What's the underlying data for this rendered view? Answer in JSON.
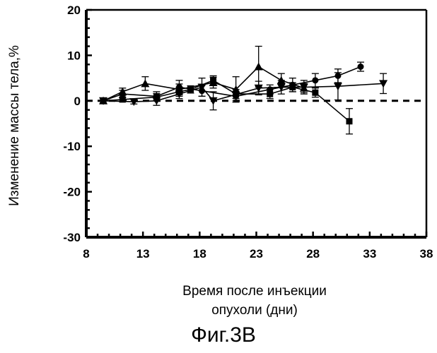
{
  "chart_data": {
    "type": "line",
    "title": "",
    "xlabel": [
      "Время после инъекции",
      "опухоли (дни)"
    ],
    "ylabel": "Изменение массы тела,%",
    "xlim": [
      8,
      38
    ],
    "ylim": [
      -30,
      20
    ],
    "xticks": [
      "8",
      "13",
      "18",
      "23",
      "28",
      "33",
      "38"
    ],
    "yticks": [
      "20",
      "10",
      "0",
      "-10",
      "-20",
      "-30"
    ],
    "reference_line": {
      "y": 0,
      "style": "dashed"
    },
    "grid": false,
    "legend": "none",
    "series": [
      {
        "marker": "circle",
        "points": [
          {
            "x": 9.5,
            "y": 0,
            "err": 0.5
          },
          {
            "x": 11.2,
            "y": 1.5,
            "err": 0.8
          },
          {
            "x": 14.2,
            "y": 1.0,
            "err": 1.0
          },
          {
            "x": 16.2,
            "y": 3.0,
            "err": 1.5
          },
          {
            "x": 18.2,
            "y": 2.2,
            "err": 1.2
          },
          {
            "x": 21.2,
            "y": 1.0,
            "err": 1.0
          },
          {
            "x": 24.2,
            "y": 2.5,
            "err": 1.0
          },
          {
            "x": 26.2,
            "y": 3.5,
            "err": 1.5
          },
          {
            "x": 28.2,
            "y": 4.5,
            "err": 1.5
          },
          {
            "x": 30.2,
            "y": 5.5,
            "err": 1.5
          },
          {
            "x": 32.2,
            "y": 7.5,
            "err": 1.0
          }
        ]
      },
      {
        "marker": "square",
        "points": [
          {
            "x": 9.5,
            "y": 0,
            "err": 0.5
          },
          {
            "x": 11.2,
            "y": 0.3,
            "err": 0.5
          },
          {
            "x": 14.2,
            "y": 0.8,
            "err": 0.8
          },
          {
            "x": 16.2,
            "y": 2.0,
            "err": 1.0
          },
          {
            "x": 17.2,
            "y": 2.5,
            "err": 0.8
          },
          {
            "x": 19.2,
            "y": 4.5,
            "err": 1.0
          },
          {
            "x": 21.2,
            "y": 1.5,
            "err": 1.0
          },
          {
            "x": 24.2,
            "y": 1.5,
            "err": 1.0
          },
          {
            "x": 26.2,
            "y": 3.0,
            "err": 1.0
          },
          {
            "x": 28.2,
            "y": 1.8,
            "err": 1.0
          },
          {
            "x": 31.2,
            "y": -4.5,
            "err": 2.8
          }
        ]
      },
      {
        "marker": "triangle-up",
        "points": [
          {
            "x": 9.5,
            "y": 0,
            "err": 0.5
          },
          {
            "x": 11.2,
            "y": 2.0,
            "err": 0.8
          },
          {
            "x": 13.2,
            "y": 3.8,
            "err": 1.5
          },
          {
            "x": 16.2,
            "y": 2.5,
            "err": 1.2
          },
          {
            "x": 19.2,
            "y": 4.0,
            "err": 1.2
          },
          {
            "x": 21.2,
            "y": 2.5,
            "err": 2.8
          },
          {
            "x": 23.2,
            "y": 7.5,
            "err": 4.5
          },
          {
            "x": 25.2,
            "y": 4.5,
            "err": 1.5
          },
          {
            "x": 27.2,
            "y": 2.8,
            "err": 1.0
          }
        ]
      },
      {
        "marker": "triangle-down",
        "points": [
          {
            "x": 9.5,
            "y": 0,
            "err": 0.5
          },
          {
            "x": 12.2,
            "y": -0.2,
            "err": 0.5
          },
          {
            "x": 14.2,
            "y": 0,
            "err": 1.0
          },
          {
            "x": 16.2,
            "y": 1.5,
            "err": 1.0
          },
          {
            "x": 18.2,
            "y": 3.0,
            "err": 2.0
          },
          {
            "x": 19.2,
            "y": 0,
            "err": 2.0
          },
          {
            "x": 23.2,
            "y": 2.8,
            "err": 1.5
          },
          {
            "x": 25.2,
            "y": 3.0,
            "err": 1.5
          },
          {
            "x": 27.2,
            "y": 3.0,
            "err": 1.5
          },
          {
            "x": 30.2,
            "y": 3.2,
            "err": 3.0
          },
          {
            "x": 34.2,
            "y": 3.8,
            "err": 2.2
          }
        ]
      }
    ]
  },
  "figure_caption": "Фиг.3В"
}
